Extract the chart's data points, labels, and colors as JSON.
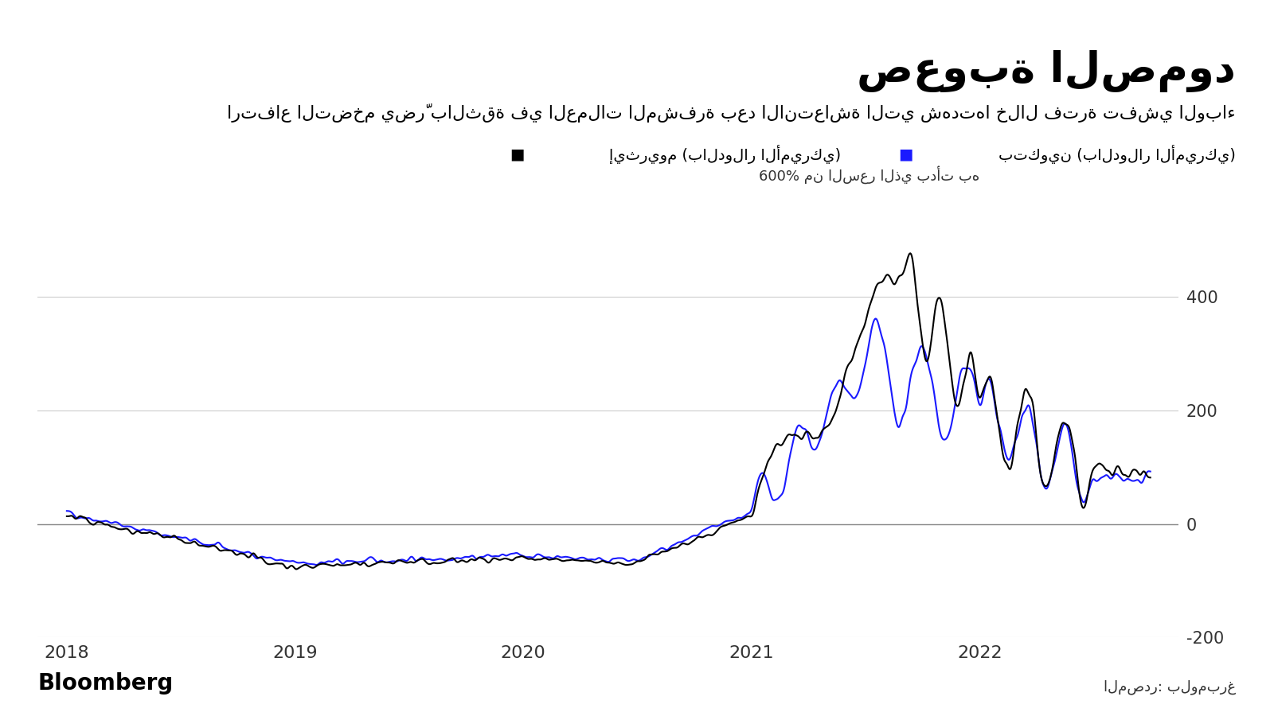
{
  "title": "صعوبة الصمود",
  "subtitle": "ارتفاع التضخم يضرّ بالثقة في العملات المشفرة بعد الانتعاشة التي شهدتها خلال فترة تفشي الوباء",
  "legend_btc": "بتكوين (بالدولار الأميركي)",
  "legend_eth": "إيثريوم (بالدولار الأميركي)",
  "annotation_600": "600% من السعر الذي بدأت به",
  "source_label": "المصدر: بلومبرغ",
  "bloomberg_label": "Bloomberg",
  "ylim": [
    -200,
    650
  ],
  "yticks": [
    -200,
    0,
    200,
    400
  ],
  "xlabel_years": [
    "2018",
    "2019",
    "2020",
    "2021",
    "2022"
  ],
  "btc_color": "#1a1aff",
  "eth_color": "#000000",
  "bg_color": "#ffffff",
  "grid_color": "#cccccc",
  "title_color": "#000000",
  "subtitle_color": "#000000"
}
